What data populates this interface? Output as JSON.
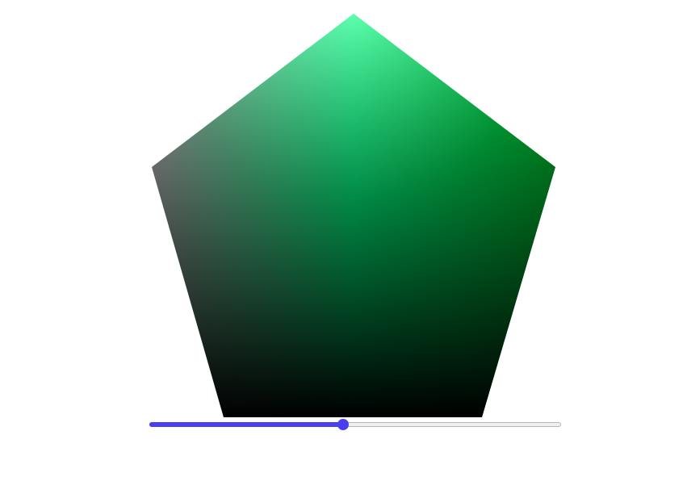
{
  "color_picker": {
    "shape": "pentagon",
    "corner_colors": {
      "top": "#00ff80",
      "upper_left": "#a6a6a6",
      "upper_right": "#00b02a",
      "bottom": "#000000"
    },
    "highlight_color": "#ffffff"
  },
  "slider": {
    "value": 0.47,
    "fill_color": "#4a3ff0",
    "track_color": "#efefef",
    "track_border_color": "#b5b5b5"
  }
}
